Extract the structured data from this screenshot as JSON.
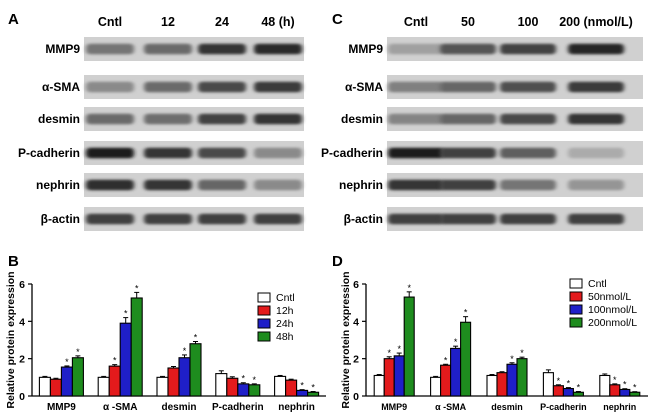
{
  "panels": {
    "A": {
      "letter": "A",
      "lanes": [
        "Cntl",
        "12",
        "24",
        "48 (h)"
      ],
      "rows": [
        "MMP9",
        "α-SMA",
        "desmin",
        "P-cadherin",
        "nephrin",
        "β-actin"
      ],
      "intensity": [
        [
          0.55,
          0.6,
          0.85,
          0.9
        ],
        [
          0.45,
          0.6,
          0.75,
          0.82
        ],
        [
          0.6,
          0.58,
          0.78,
          0.85
        ],
        [
          0.95,
          0.85,
          0.75,
          0.45
        ],
        [
          0.88,
          0.85,
          0.62,
          0.45
        ],
        [
          0.8,
          0.8,
          0.8,
          0.8
        ]
      ]
    },
    "C": {
      "letter": "C",
      "lanes": [
        "Cntl",
        "50",
        "100",
        "200 (nmol/L)"
      ],
      "rows": [
        "MMP9",
        "α-SMA",
        "desmin",
        "P-cadherin",
        "nephrin",
        "β-actin"
      ],
      "intensity": [
        [
          0.35,
          0.7,
          0.78,
          0.92
        ],
        [
          0.5,
          0.62,
          0.72,
          0.82
        ],
        [
          0.48,
          0.62,
          0.75,
          0.85
        ],
        [
          0.95,
          0.8,
          0.65,
          0.3
        ],
        [
          0.85,
          0.8,
          0.55,
          0.4
        ],
        [
          0.8,
          0.8,
          0.8,
          0.8
        ]
      ]
    },
    "B": {
      "letter": "B"
    },
    "D": {
      "letter": "D"
    }
  },
  "chart_data": [
    {
      "panel": "B",
      "type": "bar",
      "ylabel": "Relative protein expression",
      "ylim": [
        0,
        6
      ],
      "yticks": [
        0,
        2,
        4,
        6
      ],
      "categories": [
        "MMP9",
        "α -SMA",
        "desmin",
        "P-cadherin",
        "nephrin"
      ],
      "series": [
        {
          "name": "Cntl",
          "color": "#ffffff",
          "values": [
            1.0,
            1.0,
            1.0,
            1.2,
            1.05
          ],
          "errors": [
            0.05,
            0.05,
            0.05,
            0.15,
            0.05
          ],
          "sig": [
            false,
            false,
            false,
            false,
            false
          ]
        },
        {
          "name": "12h",
          "color": "#e31a1c",
          "values": [
            0.9,
            1.6,
            1.5,
            0.95,
            0.85
          ],
          "errors": [
            0.05,
            0.08,
            0.08,
            0.08,
            0.05
          ],
          "sig": [
            false,
            true,
            false,
            false,
            false
          ]
        },
        {
          "name": "24h",
          "color": "#1f1fc8",
          "values": [
            1.55,
            3.9,
            2.05,
            0.65,
            0.3
          ],
          "errors": [
            0.06,
            0.3,
            0.15,
            0.06,
            0.04
          ],
          "sig": [
            true,
            true,
            true,
            true,
            true
          ]
        },
        {
          "name": "48h",
          "color": "#1e8c1e",
          "values": [
            2.05,
            5.25,
            2.8,
            0.6,
            0.2
          ],
          "errors": [
            0.1,
            0.3,
            0.12,
            0.05,
            0.04
          ],
          "sig": [
            true,
            true,
            true,
            true,
            true
          ]
        }
      ],
      "legend": "top-right"
    },
    {
      "panel": "D",
      "type": "bar",
      "ylabel": "Relative protein expression",
      "ylim": [
        0,
        6
      ],
      "yticks": [
        0,
        2,
        4,
        6
      ],
      "categories": [
        "MMP9",
        "α -SMA",
        "desmin",
        "P-cadherin",
        "nephrin"
      ],
      "series": [
        {
          "name": "Cntl",
          "color": "#ffffff",
          "values": [
            1.1,
            1.0,
            1.1,
            1.25,
            1.1
          ],
          "errors": [
            0.05,
            0.05,
            0.05,
            0.15,
            0.08
          ],
          "sig": [
            false,
            false,
            false,
            false,
            false
          ]
        },
        {
          "name": "50nmol/L",
          "color": "#e31a1c",
          "values": [
            2.0,
            1.65,
            1.25,
            0.55,
            0.6
          ],
          "errors": [
            0.1,
            0.05,
            0.05,
            0.05,
            0.05
          ],
          "sig": [
            true,
            true,
            false,
            true,
            true
          ]
        },
        {
          "name": "100nmol/L",
          "color": "#1f1fc8",
          "values": [
            2.15,
            2.55,
            1.7,
            0.4,
            0.35
          ],
          "errors": [
            0.15,
            0.12,
            0.08,
            0.05,
            0.04
          ],
          "sig": [
            true,
            true,
            true,
            true,
            true
          ]
        },
        {
          "name": "200nmol/L",
          "color": "#1e8c1e",
          "values": [
            5.3,
            3.95,
            2.0,
            0.2,
            0.2
          ],
          "errors": [
            0.28,
            0.3,
            0.08,
            0.04,
            0.03
          ],
          "sig": [
            true,
            true,
            true,
            true,
            true
          ]
        }
      ],
      "legend": "top-right"
    }
  ]
}
